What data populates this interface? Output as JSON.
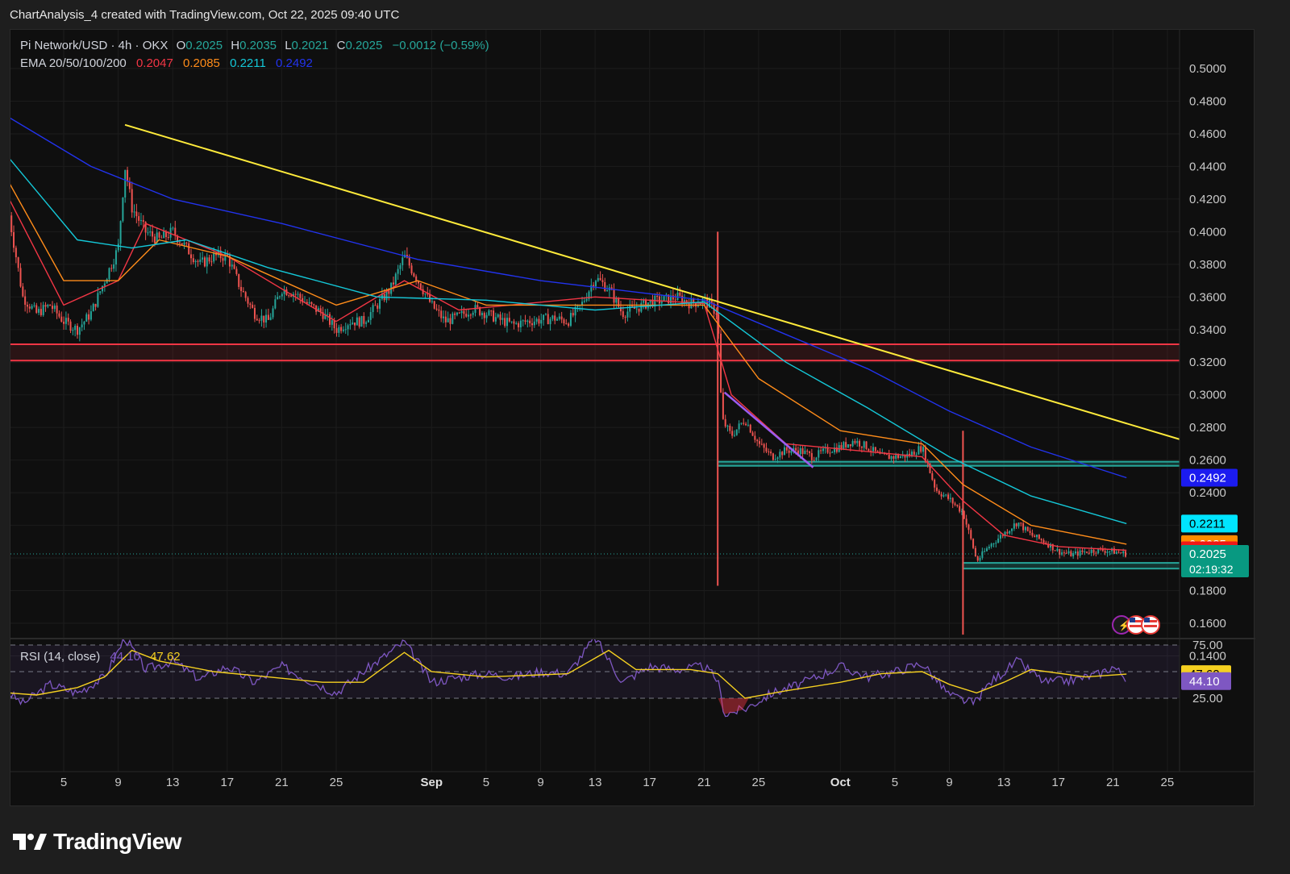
{
  "header": {
    "credit": "ChartAnalysis_4 created with TradingView.com, Oct 22, 2025 09:40 UTC"
  },
  "legend": {
    "symbol": "Pi Network/USD · 4h · OKX",
    "ohlc": [
      {
        "k": "O",
        "v": "0.2025"
      },
      {
        "k": "H",
        "v": "0.2035"
      },
      {
        "k": "L",
        "v": "0.2021"
      },
      {
        "k": "C",
        "v": "0.2025"
      }
    ],
    "change": "−0.0012 (−0.59%)",
    "ema_label": "EMA 20/50/100/200",
    "ema_values": [
      {
        "v": "0.2047",
        "color": "#f23645"
      },
      {
        "v": "0.2085",
        "color": "#ff8c1a"
      },
      {
        "v": "0.2211",
        "color": "#14c8d8"
      },
      {
        "v": "0.2492",
        "color": "#2233ee"
      }
    ]
  },
  "price_badges": [
    {
      "label": "0.2492",
      "value": 0.2492,
      "bg": "#1b1bf0",
      "fg": "#ffffff"
    },
    {
      "label": "0.2211",
      "value": 0.2211,
      "bg": "#00e5ff",
      "fg": "#000000"
    },
    {
      "label": "0.2085",
      "value": 0.2085,
      "bg": "#ff8c00",
      "fg": "#ffffff"
    },
    {
      "label": "0.2047",
      "value": 0.2047,
      "bg": "#f01818",
      "fg": "#ffffff"
    }
  ],
  "current_price": {
    "label": "0.2025",
    "countdown": "02:19:32",
    "value": 0.2025,
    "bg": "#089981"
  },
  "rsi": {
    "label": "RSI (14, close)",
    "rsi_value": "44.10",
    "ma_value": "47.62",
    "upper_band": "75.00",
    "lower_band": "25.00",
    "colors": {
      "rsi": "#7e57c2",
      "ma": "#f5d020"
    }
  },
  "colors": {
    "up": "#26a69a",
    "down": "#ef5350",
    "trendline": "#ffeb3b",
    "ema20": "#f23645",
    "ema50": "#ff8c1a",
    "ema100": "#14c8d8",
    "ema200": "#2233ee",
    "resistance_zone": "#f23645",
    "support_zone": "#26a69a",
    "wedge": "#9c5cf0"
  },
  "chart_data": {
    "type": "candlestick",
    "title": "Pi Network/USD · 4h · OKX",
    "ylim": [
      0.14,
      0.5
    ],
    "y_ticks": [
      "0.5000",
      "0.4800",
      "0.4600",
      "0.4400",
      "0.4200",
      "0.4000",
      "0.3800",
      "0.3600",
      "0.3400",
      "0.3200",
      "0.3000",
      "0.2800",
      "0.2600",
      "0.2400",
      "0.1800",
      "0.1600",
      "0.1400"
    ],
    "x_ticks": [
      {
        "label": "5",
        "date": "2025-08-05"
      },
      {
        "label": "9",
        "date": "2025-08-09"
      },
      {
        "label": "13",
        "date": "2025-08-13"
      },
      {
        "label": "17",
        "date": "2025-08-17"
      },
      {
        "label": "21",
        "date": "2025-08-21"
      },
      {
        "label": "25",
        "date": "2025-08-25"
      },
      {
        "label": "Sep",
        "date": "2025-09-01"
      },
      {
        "label": "5",
        "date": "2025-09-05"
      },
      {
        "label": "9",
        "date": "2025-09-09"
      },
      {
        "label": "13",
        "date": "2025-09-13"
      },
      {
        "label": "17",
        "date": "2025-09-17"
      },
      {
        "label": "21",
        "date": "2025-09-21"
      },
      {
        "label": "25",
        "date": "2025-09-25"
      },
      {
        "label": "Oct",
        "date": "2025-10-01"
      },
      {
        "label": "5",
        "date": "2025-10-05"
      },
      {
        "label": "9",
        "date": "2025-10-09"
      },
      {
        "label": "13",
        "date": "2025-10-13"
      },
      {
        "label": "17",
        "date": "2025-10-17"
      },
      {
        "label": "21",
        "date": "2025-10-21"
      },
      {
        "label": "25",
        "date": "2025-10-25"
      }
    ],
    "price_path": [
      [
        "2025-08-01",
        0.41
      ],
      [
        "2025-08-02",
        0.36
      ],
      [
        "2025-08-03",
        0.35
      ],
      [
        "2025-08-04",
        0.355
      ],
      [
        "2025-08-05",
        0.345
      ],
      [
        "2025-08-06",
        0.34
      ],
      [
        "2025-08-07",
        0.35
      ],
      [
        "2025-08-08",
        0.37
      ],
      [
        "2025-08-09",
        0.39
      ],
      [
        "2025-08-09.5",
        0.44
      ],
      [
        "2025-08-10",
        0.415
      ],
      [
        "2025-08-11",
        0.4
      ],
      [
        "2025-08-12",
        0.395
      ],
      [
        "2025-08-13",
        0.4
      ],
      [
        "2025-08-14",
        0.39
      ],
      [
        "2025-08-15",
        0.38
      ],
      [
        "2025-08-16",
        0.385
      ],
      [
        "2025-08-17",
        0.385
      ],
      [
        "2025-08-18",
        0.365
      ],
      [
        "2025-08-19",
        0.35
      ],
      [
        "2025-08-20",
        0.345
      ],
      [
        "2025-08-21",
        0.365
      ],
      [
        "2025-08-22",
        0.362
      ],
      [
        "2025-08-23",
        0.355
      ],
      [
        "2025-08-24",
        0.35
      ],
      [
        "2025-08-25",
        0.34
      ],
      [
        "2025-08-26",
        0.345
      ],
      [
        "2025-08-27",
        0.345
      ],
      [
        "2025-08-28",
        0.355
      ],
      [
        "2025-08-29",
        0.365
      ],
      [
        "2025-08-30",
        0.385
      ],
      [
        "2025-08-31",
        0.37
      ],
      [
        "2025-09-01",
        0.355
      ],
      [
        "2025-09-02",
        0.345
      ],
      [
        "2025-09-03",
        0.348
      ],
      [
        "2025-09-04",
        0.353
      ],
      [
        "2025-09-05",
        0.35
      ],
      [
        "2025-09-06",
        0.346
      ],
      [
        "2025-09-07",
        0.343
      ],
      [
        "2025-09-08",
        0.345
      ],
      [
        "2025-09-09",
        0.346
      ],
      [
        "2025-09-10",
        0.347
      ],
      [
        "2025-09-11",
        0.345
      ],
      [
        "2025-09-12",
        0.355
      ],
      [
        "2025-09-13",
        0.372
      ],
      [
        "2025-09-14",
        0.365
      ],
      [
        "2025-09-15",
        0.35
      ],
      [
        "2025-09-16",
        0.353
      ],
      [
        "2025-09-17",
        0.357
      ],
      [
        "2025-09-18",
        0.358
      ],
      [
        "2025-09-19",
        0.36
      ],
      [
        "2025-09-20",
        0.356
      ],
      [
        "2025-09-21",
        0.358
      ],
      [
        "2025-09-22",
        0.35
      ],
      [
        "2025-09-22.3",
        0.285
      ],
      [
        "2025-09-23",
        0.275
      ],
      [
        "2025-09-24",
        0.285
      ],
      [
        "2025-09-25",
        0.27
      ],
      [
        "2025-09-26",
        0.262
      ],
      [
        "2025-09-27",
        0.266
      ],
      [
        "2025-09-28",
        0.266
      ],
      [
        "2025-09-29",
        0.262
      ],
      [
        "2025-09-30",
        0.266
      ],
      [
        "2025-10-01",
        0.268
      ],
      [
        "2025-10-02",
        0.272
      ],
      [
        "2025-10-03",
        0.268
      ],
      [
        "2025-10-04",
        0.262
      ],
      [
        "2025-10-05",
        0.262
      ],
      [
        "2025-10-06",
        0.263
      ],
      [
        "2025-10-07",
        0.268
      ],
      [
        "2025-10-08",
        0.242
      ],
      [
        "2025-10-09",
        0.236
      ],
      [
        "2025-10-10",
        0.228
      ],
      [
        "2025-10-10.8",
        0.205
      ],
      [
        "2025-10-11",
        0.198
      ],
      [
        "2025-10-12",
        0.208
      ],
      [
        "2025-10-13",
        0.215
      ],
      [
        "2025-10-14",
        0.222
      ],
      [
        "2025-10-15",
        0.214
      ],
      [
        "2025-10-16",
        0.21
      ],
      [
        "2025-10-17",
        0.204
      ],
      [
        "2025-10-18",
        0.202
      ],
      [
        "2025-10-19",
        0.204
      ],
      [
        "2025-10-20",
        0.205
      ],
      [
        "2025-10-21",
        0.204
      ],
      [
        "2025-10-22",
        0.2025
      ]
    ],
    "spikes": [
      {
        "date": "2025-09-22",
        "low": 0.183
      },
      {
        "date": "2025-10-10",
        "low": 0.153
      }
    ],
    "ema_paths": {
      "ema20": [
        [
          "2025-08-01",
          0.42
        ],
        [
          "2025-08-05",
          0.355
        ],
        [
          "2025-08-09",
          0.37
        ],
        [
          "2025-08-11",
          0.405
        ],
        [
          "2025-08-17",
          0.385
        ],
        [
          "2025-08-25",
          0.345
        ],
        [
          "2025-08-30",
          0.37
        ],
        [
          "2025-09-03",
          0.352
        ],
        [
          "2025-09-13",
          0.36
        ],
        [
          "2025-09-21",
          0.356
        ],
        [
          "2025-09-23",
          0.3
        ],
        [
          "2025-09-27",
          0.27
        ],
        [
          "2025-10-07",
          0.262
        ],
        [
          "2025-10-10",
          0.235
        ],
        [
          "2025-10-13",
          0.214
        ],
        [
          "2025-10-17",
          0.207
        ],
        [
          "2025-10-22",
          0.2047
        ]
      ],
      "ema50": [
        [
          "2025-08-01",
          0.43
        ],
        [
          "2025-08-05",
          0.37
        ],
        [
          "2025-08-09",
          0.37
        ],
        [
          "2025-08-12",
          0.395
        ],
        [
          "2025-08-17",
          0.385
        ],
        [
          "2025-08-25",
          0.355
        ],
        [
          "2025-08-31",
          0.37
        ],
        [
          "2025-09-05",
          0.355
        ],
        [
          "2025-09-13",
          0.355
        ],
        [
          "2025-09-21",
          0.355
        ],
        [
          "2025-09-25",
          0.31
        ],
        [
          "2025-10-01",
          0.278
        ],
        [
          "2025-10-07",
          0.27
        ],
        [
          "2025-10-10",
          0.245
        ],
        [
          "2025-10-15",
          0.22
        ],
        [
          "2025-10-22",
          0.2085
        ]
      ],
      "ema100": [
        [
          "2025-08-01",
          0.445
        ],
        [
          "2025-08-06",
          0.395
        ],
        [
          "2025-08-10",
          0.39
        ],
        [
          "2025-08-14",
          0.395
        ],
        [
          "2025-08-20",
          0.378
        ],
        [
          "2025-08-28",
          0.36
        ],
        [
          "2025-09-05",
          0.358
        ],
        [
          "2025-09-13",
          0.352
        ],
        [
          "2025-09-21",
          0.357
        ],
        [
          "2025-09-27",
          0.32
        ],
        [
          "2025-10-03",
          0.292
        ],
        [
          "2025-10-09",
          0.262
        ],
        [
          "2025-10-15",
          0.238
        ],
        [
          "2025-10-22",
          0.2211
        ]
      ],
      "ema200": [
        [
          "2025-08-01",
          0.47
        ],
        [
          "2025-08-07",
          0.44
        ],
        [
          "2025-08-13",
          0.42
        ],
        [
          "2025-08-21",
          0.405
        ],
        [
          "2025-08-31",
          0.383
        ],
        [
          "2025-09-09",
          0.37
        ],
        [
          "2025-09-17",
          0.362
        ],
        [
          "2025-09-21",
          0.358
        ],
        [
          "2025-09-27",
          0.337
        ],
        [
          "2025-10-03",
          0.316
        ],
        [
          "2025-10-09",
          0.29
        ],
        [
          "2025-10-15",
          0.268
        ],
        [
          "2025-10-22",
          0.2492
        ]
      ]
    },
    "annotations": {
      "trendline": [
        [
          "2025-08-09.5",
          0.4655
        ],
        [
          "2025-10-26",
          0.2725
        ]
      ],
      "resistance_zone": {
        "from": "2025-08-01",
        "to": "2025-10-26",
        "y": [
          0.321,
          0.331
        ]
      },
      "support_zone_1": {
        "from": "2025-09-22",
        "to": "2025-10-26",
        "y": [
          0.2565,
          0.259
        ]
      },
      "support_zone_2": {
        "from": "2025-10-10",
        "to": "2025-10-26",
        "y": [
          0.1935,
          0.197
        ]
      },
      "wedge_line": [
        [
          "2025-09-22.5",
          0.3015
        ],
        [
          "2025-09-29",
          0.2555
        ]
      ]
    },
    "rsi": {
      "ylim": [
        0,
        100
      ],
      "bands": [
        25,
        75
      ],
      "rsi_path": [
        [
          "2025-08-01",
          30
        ],
        [
          "2025-08-02",
          20
        ],
        [
          "2025-08-04",
          38
        ],
        [
          "2025-08-06",
          30
        ],
        [
          "2025-08-08",
          45
        ],
        [
          "2025-08-09.5",
          82
        ],
        [
          "2025-08-11",
          52
        ],
        [
          "2025-08-13",
          60
        ],
        [
          "2025-08-15",
          43
        ],
        [
          "2025-08-17",
          55
        ],
        [
          "2025-08-19",
          40
        ],
        [
          "2025-08-21",
          55
        ],
        [
          "2025-08-23",
          42
        ],
        [
          "2025-08-25",
          30
        ],
        [
          "2025-08-27",
          50
        ],
        [
          "2025-08-30",
          78
        ],
        [
          "2025-09-01",
          40
        ],
        [
          "2025-09-03",
          45
        ],
        [
          "2025-09-05",
          48
        ],
        [
          "2025-09-07",
          45
        ],
        [
          "2025-09-09",
          50
        ],
        [
          "2025-09-11",
          48
        ],
        [
          "2025-09-13",
          82
        ],
        [
          "2025-09-15",
          40
        ],
        [
          "2025-09-17",
          55
        ],
        [
          "2025-09-19",
          52
        ],
        [
          "2025-09-21",
          55
        ],
        [
          "2025-09-22",
          42
        ],
        [
          "2025-09-22.5",
          10
        ],
        [
          "2025-09-24",
          15
        ],
        [
          "2025-09-26",
          30
        ],
        [
          "2025-09-28",
          38
        ],
        [
          "2025-10-01",
          55
        ],
        [
          "2025-10-03",
          45
        ],
        [
          "2025-10-05",
          50
        ],
        [
          "2025-10-07",
          58
        ],
        [
          "2025-10-09",
          28
        ],
        [
          "2025-10-10.8",
          20
        ],
        [
          "2025-10-12",
          40
        ],
        [
          "2025-10-14",
          60
        ],
        [
          "2025-10-16",
          40
        ],
        [
          "2025-10-18",
          42
        ],
        [
          "2025-10-20",
          48
        ],
        [
          "2025-10-21",
          55
        ],
        [
          "2025-10-22",
          44.1
        ]
      ],
      "ma_path": [
        [
          "2025-08-01",
          30
        ],
        [
          "2025-08-03",
          28
        ],
        [
          "2025-08-06",
          35
        ],
        [
          "2025-08-08",
          45
        ],
        [
          "2025-08-10",
          70
        ],
        [
          "2025-08-12",
          60
        ],
        [
          "2025-08-16",
          50
        ],
        [
          "2025-08-20",
          45
        ],
        [
          "2025-08-24",
          40
        ],
        [
          "2025-08-27",
          40
        ],
        [
          "2025-08-30",
          68
        ],
        [
          "2025-09-01",
          50
        ],
        [
          "2025-09-05",
          45
        ],
        [
          "2025-09-09",
          47
        ],
        [
          "2025-09-11",
          48
        ],
        [
          "2025-09-14",
          70
        ],
        [
          "2025-09-16",
          52
        ],
        [
          "2025-09-20",
          52
        ],
        [
          "2025-09-22",
          48
        ],
        [
          "2025-09-24",
          25
        ],
        [
          "2025-09-27",
          32
        ],
        [
          "2025-10-01",
          40
        ],
        [
          "2025-10-04",
          48
        ],
        [
          "2025-10-07",
          50
        ],
        [
          "2025-10-09",
          38
        ],
        [
          "2025-10-11",
          30
        ],
        [
          "2025-10-13",
          40
        ],
        [
          "2025-10-15",
          52
        ],
        [
          "2025-10-19",
          45
        ],
        [
          "2025-10-22",
          47.62
        ]
      ]
    }
  }
}
